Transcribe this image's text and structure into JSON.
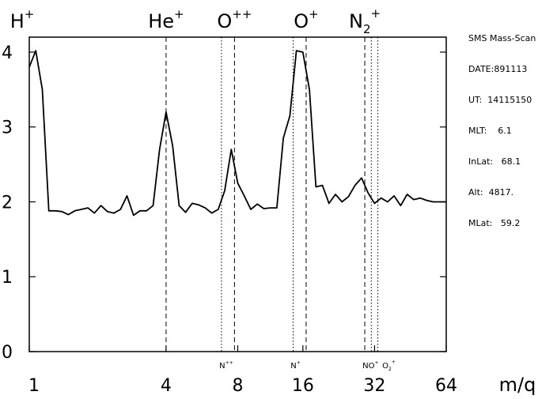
{
  "chart_data": {
    "type": "line",
    "title": "",
    "xlabel": "m/q",
    "ylabel": "",
    "xlim": [
      0,
      64
    ],
    "ylim": [
      0,
      4.2
    ],
    "y_ticks": [
      0,
      1,
      2,
      3,
      4
    ],
    "x_tick_labels": [
      "1",
      "4",
      "8",
      "16",
      "32",
      "64"
    ],
    "x_tick_values": [
      0,
      21,
      32,
      42,
      53,
      64
    ],
    "species": [
      {
        "label": "H",
        "sup": "+",
        "sub": ""
      },
      {
        "label": "He",
        "sup": "+",
        "sub": ""
      },
      {
        "label": "O",
        "sup": "++",
        "sub": ""
      },
      {
        "label": "O",
        "sup": "+",
        "sub": ""
      },
      {
        "label": "N",
        "sup": "+",
        "sub": "2"
      }
    ],
    "minor_species": [
      {
        "label": "N",
        "sup": "++",
        "sub": ""
      },
      {
        "label": "N",
        "sup": "+",
        "sub": ""
      },
      {
        "label": "NO",
        "sup": "+",
        "sub": ""
      },
      {
        "label": "O",
        "sup": "+",
        "sub": "2"
      }
    ],
    "major_lines_x": [
      21,
      31.5,
      42.5,
      51.5
    ],
    "minor_lines_x": [
      29.5,
      40.5,
      52.5,
      53.5
    ],
    "series": [
      {
        "x": [
          0,
          1,
          2,
          3,
          4,
          5,
          6,
          7,
          8,
          9,
          10,
          11,
          12,
          13,
          14,
          15,
          16,
          17,
          18,
          19,
          20,
          21,
          22,
          23,
          24,
          25,
          26,
          27,
          28,
          29,
          30,
          31,
          32,
          33,
          34,
          35,
          36,
          37,
          38,
          39,
          40,
          41,
          42,
          43,
          44,
          45,
          46,
          47,
          48,
          49,
          50,
          51,
          52,
          53,
          54,
          55,
          56,
          57,
          58,
          59,
          60,
          61,
          62,
          63,
          64
        ],
        "y": [
          3.8,
          4.02,
          3.5,
          1.88,
          1.88,
          1.87,
          1.83,
          1.88,
          1.9,
          1.92,
          1.85,
          1.95,
          1.87,
          1.85,
          1.9,
          2.08,
          1.82,
          1.88,
          1.88,
          1.95,
          2.7,
          3.2,
          2.75,
          1.95,
          1.86,
          1.98,
          1.96,
          1.92,
          1.85,
          1.9,
          2.15,
          2.7,
          2.25,
          2.08,
          1.9,
          1.97,
          1.91,
          1.92,
          1.92,
          2.85,
          3.15,
          4.02,
          4.0,
          3.5,
          2.2,
          2.22,
          1.98,
          2.1,
          2.0,
          2.07,
          2.22,
          2.32,
          2.12,
          1.98,
          2.05,
          2.0,
          2.08,
          1.95,
          2.1,
          2.03,
          2.05,
          2.02,
          2.0,
          2.0,
          2.0
        ]
      }
    ]
  },
  "info": {
    "title": "SMS Mass-Scan",
    "date": "DATE:891113",
    "ut": "UT:  14115150",
    "mlt": "MLT:    6.1",
    "inlat": "InLat:   68.1",
    "alt": "Alt:  4817.",
    "mlat": "MLat:   59.2"
  }
}
